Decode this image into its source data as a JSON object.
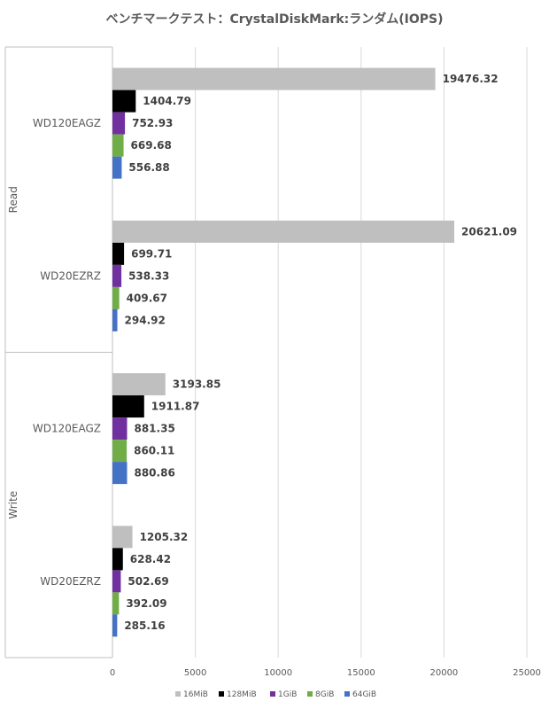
{
  "chart_data": {
    "type": "bar",
    "orientation": "horizontal",
    "title": "ベンチマークテスト：CrystalDiskMark:ランダム(IOPS)",
    "groups": [
      {
        "label": "Read",
        "categories": [
          "WD120EAGZ",
          "WD20EZRZ"
        ]
      },
      {
        "label": "Write",
        "categories": [
          "WD120EAGZ",
          "WD20EZRZ"
        ]
      }
    ],
    "series": [
      {
        "name": "16MiB",
        "color": "#bfbfbf",
        "values": [
          19476.32,
          20621.09,
          3193.85,
          1205.32
        ]
      },
      {
        "name": "128MiB",
        "color": "#000000",
        "values": [
          1404.79,
          699.71,
          1911.87,
          628.42
        ]
      },
      {
        "name": "1GiB",
        "color": "#7030a0",
        "values": [
          752.93,
          538.33,
          881.35,
          502.69
        ]
      },
      {
        "name": "8GiB",
        "color": "#70ad47",
        "values": [
          669.68,
          409.67,
          860.11,
          392.09
        ]
      },
      {
        "name": "64GiB",
        "color": "#4472c4",
        "values": [
          556.88,
          294.92,
          880.86,
          285.16
        ]
      }
    ],
    "xlim": [
      0,
      25000
    ],
    "xticks": [
      0,
      5000,
      10000,
      15000,
      20000,
      25000
    ],
    "grid": true,
    "legend_position": "bottom"
  }
}
